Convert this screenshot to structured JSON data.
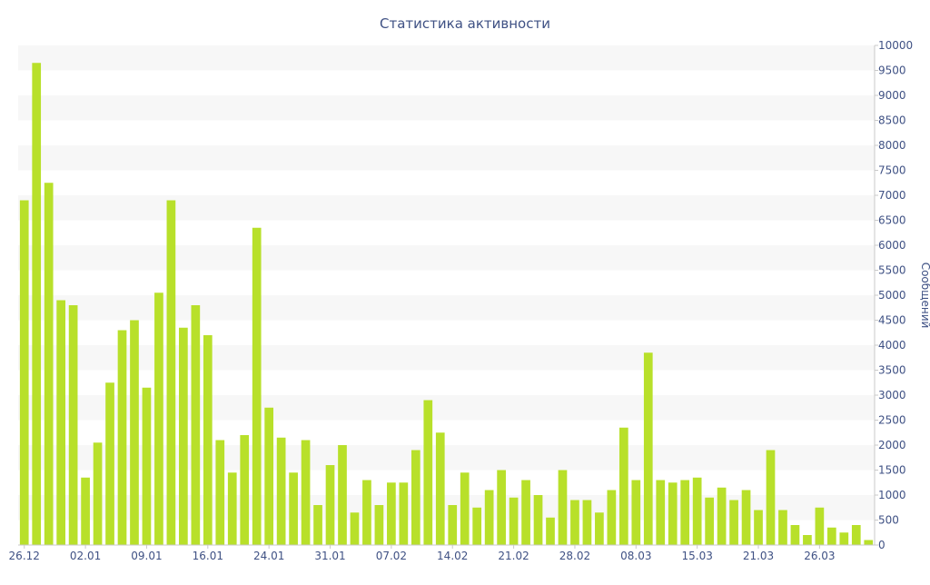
{
  "chart_data": {
    "type": "bar",
    "title": "Статистика активности",
    "xlabel": "",
    "ylabel": "Сообщений",
    "ylim": [
      0,
      10000
    ],
    "y_ticks": [
      0,
      500,
      1000,
      1500,
      2000,
      2500,
      3000,
      3500,
      4000,
      4500,
      5000,
      5500,
      6000,
      6500,
      7000,
      7500,
      8000,
      8500,
      9000,
      9500,
      10000
    ],
    "y_axis_side": "right",
    "grid": "alternating horizontal bands",
    "x_tick_labels": [
      {
        "label": "26.12",
        "index": 0
      },
      {
        "label": "02.01",
        "index": 5
      },
      {
        "label": "09.01",
        "index": 10
      },
      {
        "label": "16.01",
        "index": 15
      },
      {
        "label": "24.01",
        "index": 20
      },
      {
        "label": "31.01",
        "index": 25
      },
      {
        "label": "07.02",
        "index": 30
      },
      {
        "label": "14.02",
        "index": 35
      },
      {
        "label": "21.02",
        "index": 40
      },
      {
        "label": "28.02",
        "index": 45
      },
      {
        "label": "08.03",
        "index": 50
      },
      {
        "label": "15.03",
        "index": 55
      },
      {
        "label": "21.03",
        "index": 60
      },
      {
        "label": "26.03",
        "index": 65
      }
    ],
    "values": [
      6900,
      9650,
      7250,
      4900,
      4800,
      1350,
      2050,
      3250,
      4300,
      4500,
      3150,
      5050,
      6900,
      4350,
      4800,
      4200,
      2100,
      1450,
      2200,
      6350,
      2750,
      2150,
      1450,
      2100,
      800,
      1600,
      2000,
      650,
      1300,
      800,
      1250,
      1250,
      1900,
      2900,
      2250,
      800,
      1450,
      750,
      1100,
      1500,
      950,
      1300,
      1000,
      550,
      1500,
      900,
      900,
      650,
      1100,
      2350,
      1300,
      3850,
      1300,
      1250,
      1300,
      1350,
      950,
      1150,
      900,
      1100,
      700,
      1900,
      700,
      400,
      200,
      750,
      350,
      250,
      400,
      100
    ],
    "colors": {
      "bar": "#b8e02a",
      "text": "#3f5184",
      "band": "#f7f7f7"
    }
  }
}
